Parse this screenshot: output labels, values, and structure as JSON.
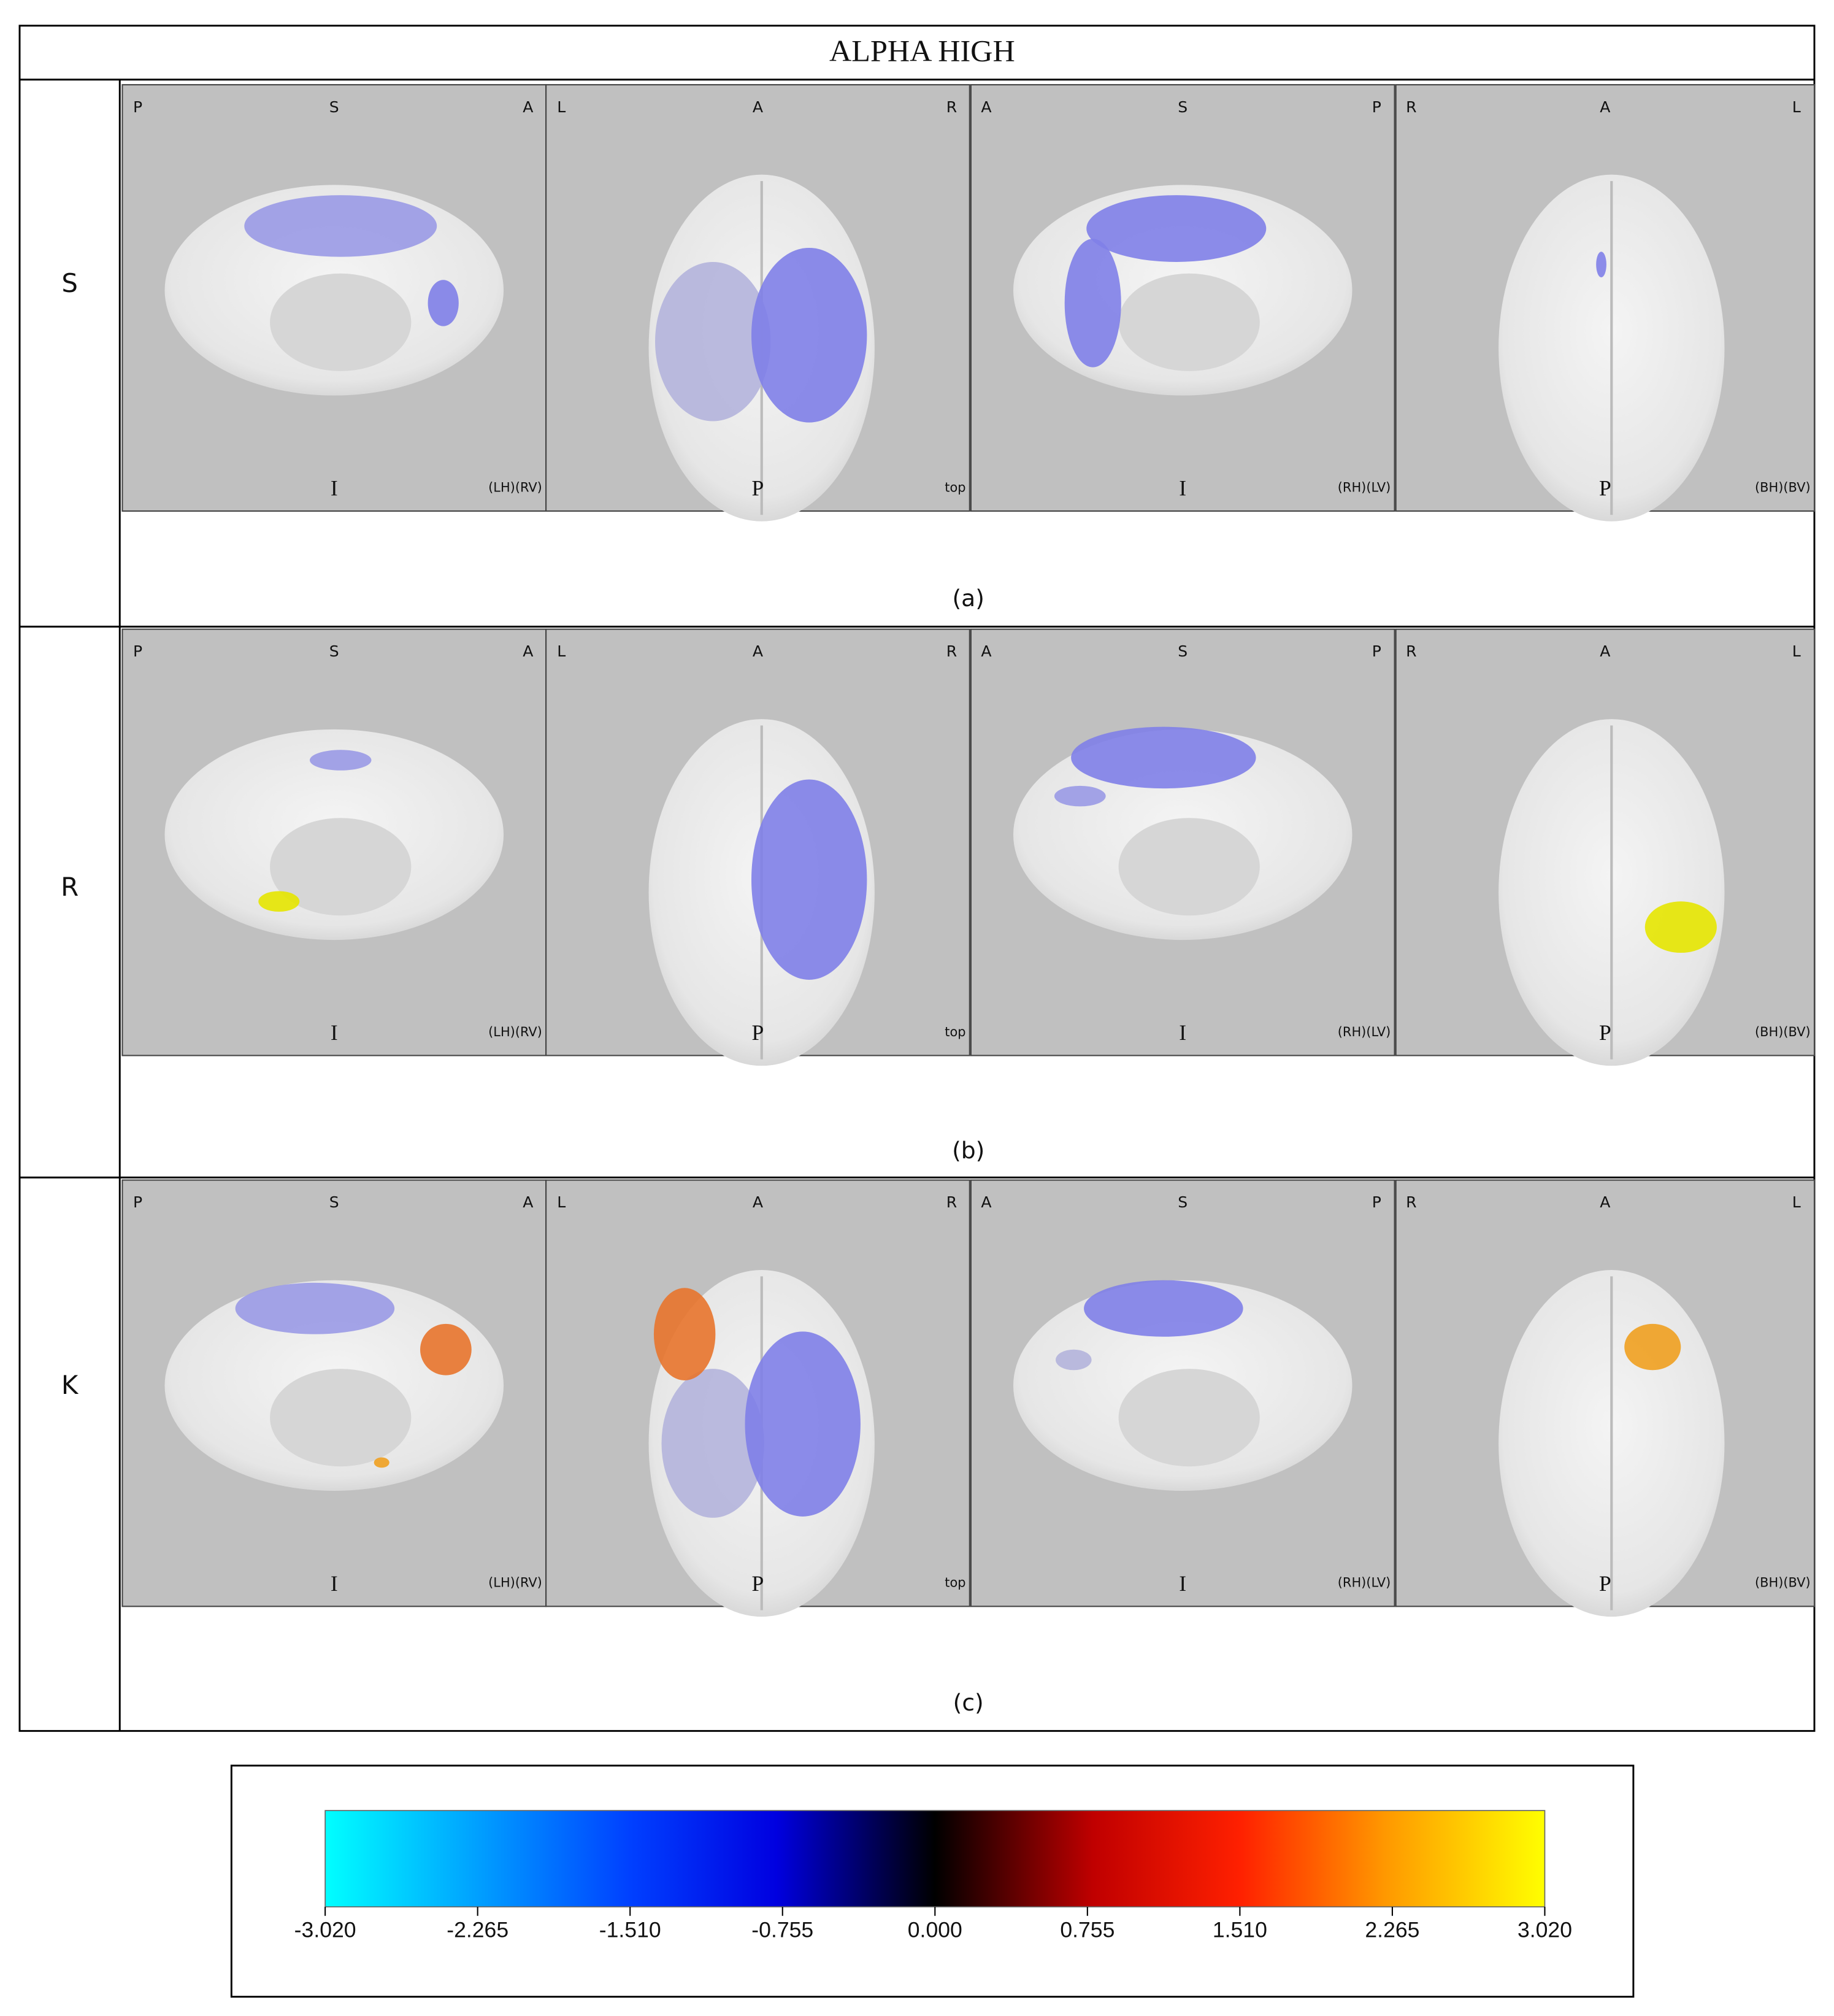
{
  "title": "ALPHA HIGH",
  "rows": [
    {
      "label": "S",
      "caption": "(a)",
      "panels": [
        {
          "top": [
            "P",
            "S",
            "A"
          ],
          "bottom": "I",
          "corner": "(LH)(RV)"
        },
        {
          "top": [
            "L",
            "A",
            "R"
          ],
          "bottom": "P",
          "corner": "top"
        },
        {
          "top": [
            "A",
            "S",
            "P"
          ],
          "bottom": "I",
          "corner": "(RH)(LV)"
        },
        {
          "top": [
            "R",
            "A",
            "L"
          ],
          "bottom": "P",
          "corner": "(BH)(BV)"
        }
      ]
    },
    {
      "label": "R",
      "caption": "(b)",
      "panels": [
        {
          "top": [
            "P",
            "S",
            "A"
          ],
          "bottom": "I",
          "corner": "(LH)(RV)"
        },
        {
          "top": [
            "L",
            "A",
            "R"
          ],
          "bottom": "P",
          "corner": "top"
        },
        {
          "top": [
            "A",
            "S",
            "P"
          ],
          "bottom": "I",
          "corner": "(RH)(LV)"
        },
        {
          "top": [
            "R",
            "A",
            "L"
          ],
          "bottom": "P",
          "corner": "(BH)(BV)"
        }
      ]
    },
    {
      "label": "K",
      "caption": "(c)",
      "panels": [
        {
          "top": [
            "P",
            "S",
            "A"
          ],
          "bottom": "I",
          "corner": "(LH)(RV)"
        },
        {
          "top": [
            "L",
            "A",
            "R"
          ],
          "bottom": "P",
          "corner": "top"
        },
        {
          "top": [
            "A",
            "S",
            "P"
          ],
          "bottom": "I",
          "corner": "(RH)(LV)"
        },
        {
          "top": [
            "R",
            "A",
            "L"
          ],
          "bottom": "P",
          "corner": "(BH)(BV)"
        }
      ]
    }
  ],
  "colorbar": {
    "ticks": [
      "-3.020",
      "-2.265",
      "-1.510",
      "-0.755",
      "0.000",
      "0.755",
      "1.510",
      "2.265",
      "3.020"
    ]
  }
}
